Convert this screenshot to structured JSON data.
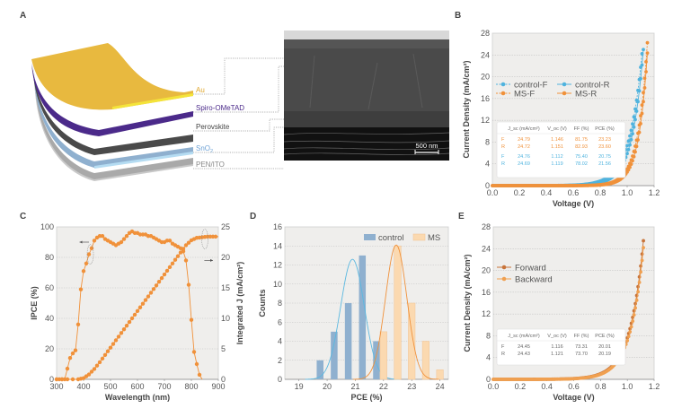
{
  "panels": {
    "A": {
      "label": "A",
      "layers": [
        {
          "name": "Au",
          "color": "#e8b93f",
          "text_color": "#e0a82e"
        },
        {
          "name": "Spiro-OMeTAD",
          "color": "#4b2a8a",
          "text_color": "#4b2a8a"
        },
        {
          "name": "Perovskite",
          "color": "#4a4a4a",
          "text_color": "#444444"
        },
        {
          "name": "SnO2",
          "color": "#8fb3d6",
          "text_color": "#6fa3d6"
        },
        {
          "name": "PEN/ITO",
          "color": "#b8b8b8",
          "text_color": "#888888"
        }
      ],
      "sem_scale_bar": "500 nm"
    },
    "B": {
      "label": "B"
    },
    "C": {
      "label": "C"
    },
    "D": {
      "label": "D"
    },
    "E": {
      "label": "E"
    }
  },
  "chart_data": [
    {
      "id": "B",
      "type": "line",
      "xlabel": "Voltage (V)",
      "ylabel": "Current Density (mA/cm²)",
      "xlim": [
        0,
        1.2
      ],
      "ylim": [
        0,
        28
      ],
      "xticks": [
        "0.0",
        "0.2",
        "0.4",
        "0.6",
        "0.8",
        "1.0",
        "1.2"
      ],
      "yticks": [
        "0",
        "4",
        "8",
        "12",
        "16",
        "20",
        "24",
        "28"
      ],
      "grid": "horizontal-dotted",
      "legend_position": "center-left",
      "series": [
        {
          "name": "control-F",
          "color": "#4fb3de",
          "dashed": true,
          "jsc": 24.76,
          "voc": 1.112,
          "ff": 75.4
        },
        {
          "name": "control-R",
          "color": "#4fb3de",
          "dashed": false,
          "jsc": 24.69,
          "voc": 1.119,
          "ff": 78.02
        },
        {
          "name": "MS-F",
          "color": "#f0913a",
          "dashed": true,
          "jsc": 24.79,
          "voc": 1.146,
          "ff": 81.75
        },
        {
          "name": "MS-R",
          "color": "#f0913a",
          "dashed": false,
          "jsc": 24.72,
          "voc": 1.151,
          "ff": 82.93
        }
      ],
      "table": {
        "headers": [
          "J_sc (mA/cm²)",
          "V_oc (V)",
          "FF (%)",
          "PCE (%)"
        ],
        "rows": [
          {
            "scan": "F",
            "color": "#f0913a",
            "values": [
              "24.79",
              "1.146",
              "81.75",
              "23.23"
            ]
          },
          {
            "scan": "R",
            "color": "#f0913a",
            "values": [
              "24.72",
              "1.151",
              "82.93",
              "23.60"
            ]
          },
          {
            "scan": "F",
            "color": "#4fb3de",
            "values": [
              "24.76",
              "1.112",
              "75.40",
              "20.75"
            ]
          },
          {
            "scan": "R",
            "color": "#4fb3de",
            "values": [
              "24.69",
              "1.119",
              "78.02",
              "21.56"
            ]
          }
        ]
      }
    },
    {
      "id": "C",
      "type": "line",
      "xlabel": "Wavelength (nm)",
      "ylabel": "IPCE (%)",
      "y2label": "Integrated J (mA/cm²)",
      "xlim": [
        300,
        900
      ],
      "ylim": [
        0,
        100
      ],
      "y2lim": [
        0,
        25
      ],
      "xticks": [
        "300",
        "400",
        "500",
        "600",
        "700",
        "800",
        "900"
      ],
      "yticks": [
        "0",
        "20",
        "40",
        "60",
        "80",
        "100"
      ],
      "y2ticks": [
        "0",
        "5",
        "10",
        "15",
        "20",
        "25"
      ],
      "grid": "horizontal-dotted",
      "color": "#f0913a",
      "series": [
        {
          "name": "IPCE",
          "axis": "left",
          "x": [
            300,
            310,
            320,
            330,
            340,
            350,
            360,
            370,
            380,
            390,
            400,
            410,
            420,
            430,
            440,
            450,
            460,
            470,
            480,
            490,
            500,
            510,
            520,
            530,
            540,
            550,
            560,
            570,
            580,
            590,
            600,
            610,
            620,
            630,
            640,
            650,
            660,
            670,
            680,
            690,
            700,
            710,
            720,
            730,
            740,
            750,
            760,
            770,
            780,
            790,
            800,
            810,
            820,
            830,
            840
          ],
          "y": [
            0,
            0,
            0,
            0,
            7,
            14,
            17,
            19,
            36,
            59,
            71,
            76,
            82,
            86,
            91,
            93,
            94,
            94,
            92,
            91,
            90,
            89,
            88,
            89,
            90,
            92,
            94,
            96,
            97,
            96,
            96,
            95,
            95,
            95,
            94,
            94,
            93,
            92,
            91,
            90,
            90,
            91,
            91,
            89,
            88,
            87,
            86,
            84,
            78,
            62,
            39,
            18,
            10,
            3,
            0
          ]
        },
        {
          "name": "Integrated J",
          "axis": "right",
          "x": [
            300,
            340,
            380,
            400,
            420,
            440,
            460,
            480,
            500,
            520,
            540,
            560,
            580,
            600,
            620,
            640,
            660,
            680,
            700,
            720,
            740,
            760,
            780,
            800,
            820,
            840,
            860,
            880,
            900
          ],
          "y": [
            0,
            0,
            0,
            0.2,
            0.8,
            1.7,
            2.8,
            4.0,
            5.2,
            6.4,
            7.6,
            8.8,
            10.0,
            11.2,
            12.4,
            13.6,
            14.8,
            16.0,
            17.2,
            18.4,
            19.6,
            20.8,
            22.0,
            22.8,
            23.2,
            23.3,
            23.4,
            23.4,
            23.4
          ]
        }
      ],
      "annotations": [
        "left-arrow → IPCE axis",
        "right-arrow → Integrated J axis"
      ]
    },
    {
      "id": "D",
      "type": "bar",
      "xlabel": "PCE (%)",
      "ylabel": "Counts",
      "xlim": [
        18.5,
        24.3
      ],
      "ylim": [
        0,
        16
      ],
      "xticks": [
        "19",
        "20",
        "21",
        "22",
        "23",
        "24"
      ],
      "yticks": [
        "0",
        "2",
        "4",
        "6",
        "8",
        "10",
        "12",
        "14",
        "16"
      ],
      "grid": "horizontal-dotted",
      "legend_position": "top-right",
      "series": [
        {
          "name": "control",
          "color": "#8fb0cf",
          "fit_color": "#5bb8e0",
          "x": [
            19.75,
            20.25,
            20.75,
            21.25,
            21.75
          ],
          "values": [
            2,
            5,
            8,
            13,
            4
          ],
          "fit": {
            "mean": 20.9,
            "sd": 0.42,
            "peak": 12.6
          }
        },
        {
          "name": "MS",
          "color": "#fbd9b0",
          "fit_color": "#f0913a",
          "x": [
            22.0,
            22.5,
            23.0,
            23.5,
            24.0
          ],
          "values": [
            5,
            14,
            8,
            4,
            1
          ],
          "fit": {
            "mean": 22.45,
            "sd": 0.38,
            "peak": 14.1
          }
        }
      ]
    },
    {
      "id": "E",
      "type": "line",
      "xlabel": "Voltage (V)",
      "ylabel": "Current Density (mA/cm²)",
      "xlim": [
        0,
        1.2
      ],
      "ylim": [
        0,
        28
      ],
      "xticks": [
        "0.0",
        "0.2",
        "0.4",
        "0.6",
        "0.8",
        "1.0",
        "1.2"
      ],
      "yticks": [
        "0",
        "4",
        "8",
        "12",
        "16",
        "20",
        "24",
        "28"
      ],
      "grid": "horizontal-dotted",
      "legend_position": "upper-left",
      "series": [
        {
          "name": "Forward",
          "color": "#c8743a",
          "jsc": 24.45,
          "voc": 1.116,
          "ff": 73.31
        },
        {
          "name": "Backward",
          "color": "#f0a050",
          "jsc": 24.43,
          "voc": 1.121,
          "ff": 73.7
        }
      ],
      "table": {
        "headers": [
          "J_sc (mA/cm²)",
          "V_oc (V)",
          "FF (%)",
          "PCE (%)"
        ],
        "rows": [
          {
            "scan": "F",
            "color": "#666666",
            "values": [
              "24.45",
              "1.116",
              "73.31",
              "20.01"
            ]
          },
          {
            "scan": "R",
            "color": "#666666",
            "values": [
              "24.43",
              "1.121",
              "73.70",
              "20.19"
            ]
          }
        ]
      }
    }
  ]
}
